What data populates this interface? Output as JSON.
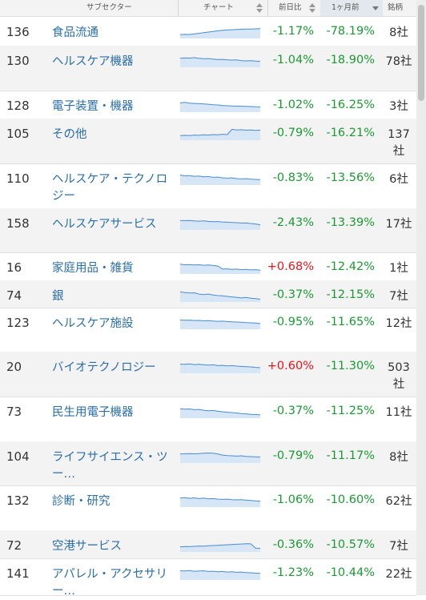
{
  "header": {
    "subsector": "サブセクター",
    "chart": "チャート",
    "day_change": "前日比",
    "month_change": "1ヶ月前",
    "count": "銘柄"
  },
  "rows": [
    {
      "rank": "136",
      "name": "食品流通",
      "day": "-1.17%",
      "month": "-78.19%",
      "count": "8社",
      "day_dir": "neg",
      "spark": [
        0.3,
        0.32,
        0.31,
        0.36,
        0.4,
        0.45,
        0.5,
        0.55,
        0.6,
        0.63,
        0.66,
        0.68,
        0.7,
        0.72,
        0.74,
        0.73,
        0.75,
        0.76
      ]
    },
    {
      "rank": "130",
      "name": "ヘルスケア機器",
      "day": "-1.04%",
      "month": "-18.90%",
      "count": "78社",
      "day_dir": "neg",
      "spark": [
        0.7,
        0.74,
        0.72,
        0.75,
        0.7,
        0.66,
        0.68,
        0.64,
        0.6,
        0.62,
        0.58,
        0.56,
        0.58,
        0.52,
        0.5,
        0.52,
        0.48,
        0.46
      ]
    },
    {
      "rank": "128",
      "name": "電子装置・機器",
      "day": "-1.02%",
      "month": "-16.25%",
      "count": "3社",
      "day_dir": "neg",
      "spark": [
        0.72,
        0.76,
        0.7,
        0.68,
        0.66,
        0.64,
        0.62,
        0.58,
        0.56,
        0.52,
        0.5,
        0.48,
        0.47,
        0.46,
        0.45,
        0.44,
        0.42,
        0.41
      ]
    },
    {
      "rank": "105",
      "name": "その他",
      "day": "-0.79%",
      "month": "-16.21%",
      "count": "137社",
      "day_dir": "neg",
      "spark": [
        0.35,
        0.38,
        0.36,
        0.4,
        0.38,
        0.42,
        0.4,
        0.44,
        0.42,
        0.46,
        0.44,
        0.85,
        0.8,
        0.82,
        0.78,
        0.8,
        0.76,
        0.78
      ]
    },
    {
      "rank": "110",
      "name": "ヘルスケア・テクノロジー",
      "day": "-0.83%",
      "month": "-13.56%",
      "count": "6社",
      "day_dir": "neg",
      "spark": [
        0.78,
        0.72,
        0.74,
        0.68,
        0.7,
        0.64,
        0.66,
        0.6,
        0.62,
        0.56,
        0.54,
        0.56,
        0.5,
        0.48,
        0.5,
        0.46,
        0.44,
        0.42
      ]
    },
    {
      "rank": "158",
      "name": "ヘルスケアサービス",
      "day": "-2.43%",
      "month": "-13.39%",
      "count": "17社",
      "day_dir": "neg",
      "spark": [
        0.74,
        0.72,
        0.73,
        0.7,
        0.68,
        0.7,
        0.66,
        0.64,
        0.65,
        0.62,
        0.6,
        0.58,
        0.56,
        0.54,
        0.55,
        0.5,
        0.46,
        0.4
      ]
    },
    {
      "rank": "16",
      "name": "家庭用品・雑貨",
      "day": "+0.68%",
      "month": "-12.42%",
      "count": "1社",
      "day_dir": "pos",
      "spark": [
        0.76,
        0.72,
        0.74,
        0.7,
        0.72,
        0.68,
        0.7,
        0.66,
        0.62,
        0.38,
        0.4,
        0.36,
        0.38,
        0.34,
        0.36,
        0.32,
        0.34,
        0.3
      ]
    },
    {
      "rank": "74",
      "name": "銀",
      "day": "-0.37%",
      "month": "-12.15%",
      "count": "7社",
      "day_dir": "neg",
      "spark": [
        0.8,
        0.74,
        0.7,
        0.72,
        0.62,
        0.58,
        0.62,
        0.55,
        0.5,
        0.48,
        0.44,
        0.4,
        0.36,
        0.32,
        0.36,
        0.3,
        0.26,
        0.22
      ]
    },
    {
      "rank": "123",
      "name": "ヘルスケア施設",
      "day": "-0.95%",
      "month": "-11.65%",
      "count": "12社",
      "day_dir": "neg",
      "spark": [
        0.72,
        0.7,
        0.71,
        0.68,
        0.69,
        0.66,
        0.67,
        0.64,
        0.62,
        0.63,
        0.6,
        0.58,
        0.56,
        0.55,
        0.52,
        0.5,
        0.48,
        0.44
      ]
    },
    {
      "rank": "20",
      "name": "バイオテクノロジー",
      "day": "+0.60%",
      "month": "-11.30%",
      "count": "503社",
      "day_dir": "pos",
      "spark": [
        0.72,
        0.7,
        0.74,
        0.68,
        0.7,
        0.66,
        0.64,
        0.66,
        0.6,
        0.62,
        0.58,
        0.6,
        0.56,
        0.54,
        0.52,
        0.5,
        0.46,
        0.44
      ]
    },
    {
      "rank": "73",
      "name": "民生用電子機器",
      "day": "-0.37%",
      "month": "-11.25%",
      "count": "11社",
      "day_dir": "neg",
      "spark": [
        0.74,
        0.7,
        0.72,
        0.66,
        0.68,
        0.62,
        0.58,
        0.6,
        0.54,
        0.5,
        0.46,
        0.44,
        0.4,
        0.36,
        0.34,
        0.3,
        0.28,
        0.26
      ]
    },
    {
      "rank": "104",
      "name": "ライフサイエンス・ツー…",
      "day": "-0.79%",
      "month": "-11.17%",
      "count": "8社",
      "day_dir": "neg",
      "spark": [
        0.7,
        0.72,
        0.74,
        0.72,
        0.74,
        0.76,
        0.78,
        0.76,
        0.7,
        0.62,
        0.58,
        0.56,
        0.54,
        0.56,
        0.52,
        0.5,
        0.48,
        0.46
      ]
    },
    {
      "rank": "132",
      "name": "診断・研究",
      "day": "-1.06%",
      "month": "-10.60%",
      "count": "62社",
      "day_dir": "neg",
      "spark": [
        0.7,
        0.74,
        0.68,
        0.72,
        0.66,
        0.7,
        0.64,
        0.66,
        0.62,
        0.6,
        0.62,
        0.58,
        0.56,
        0.58,
        0.54,
        0.52,
        0.48,
        0.46
      ]
    },
    {
      "rank": "72",
      "name": "空港サービス",
      "day": "-0.36%",
      "month": "-10.57%",
      "count": "7社",
      "day_dir": "neg",
      "spark": [
        0.4,
        0.42,
        0.41,
        0.44,
        0.46,
        0.45,
        0.48,
        0.5,
        0.52,
        0.54,
        0.56,
        0.58,
        0.6,
        0.62,
        0.64,
        0.63,
        0.3,
        0.28
      ]
    },
    {
      "rank": "141",
      "name": "アパレル・アクセサリー…",
      "day": "-1.23%",
      "month": "-10.44%",
      "count": "22社",
      "day_dir": "neg",
      "spark": [
        0.72,
        0.7,
        0.74,
        0.68,
        0.7,
        0.72,
        0.66,
        0.68,
        0.64,
        0.66,
        0.62,
        0.64,
        0.6,
        0.62,
        0.58,
        0.56,
        0.54,
        0.52
      ]
    }
  ]
}
